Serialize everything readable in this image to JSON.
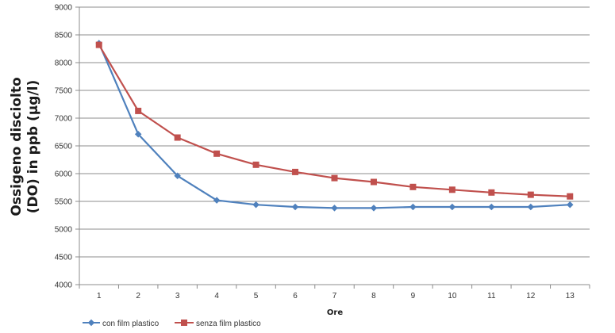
{
  "chart_data": {
    "type": "line",
    "x": [
      1,
      2,
      3,
      4,
      5,
      6,
      7,
      8,
      9,
      10,
      11,
      12,
      13
    ],
    "series": [
      {
        "name": "con film plastico",
        "color": "#4f81bd",
        "marker": "diamond",
        "values": [
          8350,
          6710,
          5960,
          5520,
          5440,
          5400,
          5380,
          5380,
          5400,
          5400,
          5400,
          5400,
          5440
        ]
      },
      {
        "name": "senza film plastico",
        "color": "#c0504d",
        "marker": "square",
        "values": [
          8320,
          7130,
          6650,
          6360,
          6160,
          6030,
          5920,
          5850,
          5760,
          5710,
          5660,
          5620,
          5590
        ]
      }
    ],
    "title": "",
    "xlabel": "Ore",
    "ylabel_lines": [
      "Ossigeno disciolto",
      "(DO) in ppb (µg/l)"
    ],
    "ylim": [
      4000,
      9000
    ],
    "yticks": [
      4000,
      4500,
      5000,
      5500,
      6000,
      6500,
      7000,
      7500,
      8000,
      8500,
      9000
    ],
    "grid": "horizontal",
    "legend_position": "bottom-left"
  }
}
